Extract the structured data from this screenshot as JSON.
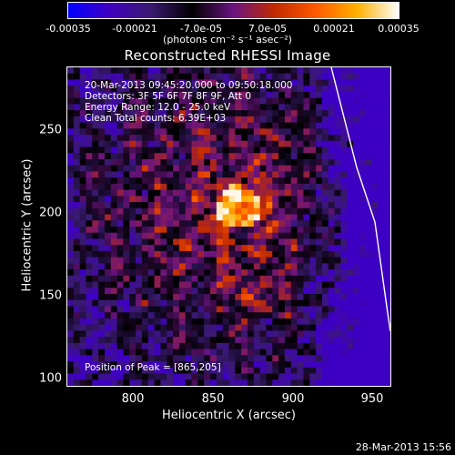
{
  "colorbar": {
    "ticks": [
      "-0.00035",
      "-0.00021",
      "-7.0e-05",
      "7.0e-05",
      "0.00021",
      "0.00035"
    ],
    "units": "(photons cm⁻² s⁻¹ asec⁻²)",
    "colors": [
      "#0000ff",
      "#4000c0",
      "#3a1a70",
      "#000000",
      "#6a1480",
      "#c02a00",
      "#ff5a00",
      "#ffb000",
      "#ffffff"
    ]
  },
  "title": "Reconstructed RHESSI Image",
  "info": {
    "line1": "20-Mar-2013 09:45:20.000 to 09:50:18.000",
    "line2": "Detectors: 3F 5F 6F 7F 8F 9F, Att 0",
    "line3": "Energy Range: 12.0 - 25.0 keV",
    "line4": "Clean     Total counts: 6.39E+03",
    "peak": "Position of Peak = [865,205]"
  },
  "axes": {
    "xlabel": "Heliocentric X (arcsec)",
    "ylabel": "Heliocentric Y (arcsec)",
    "xticks": [
      "800",
      "850",
      "900",
      "950"
    ],
    "yticks": [
      "250",
      "200",
      "150",
      "100"
    ],
    "xlim": [
      763,
      955
    ],
    "ylim": [
      97,
      285
    ]
  },
  "timestamp": "28-Mar-2013 15:56"
}
